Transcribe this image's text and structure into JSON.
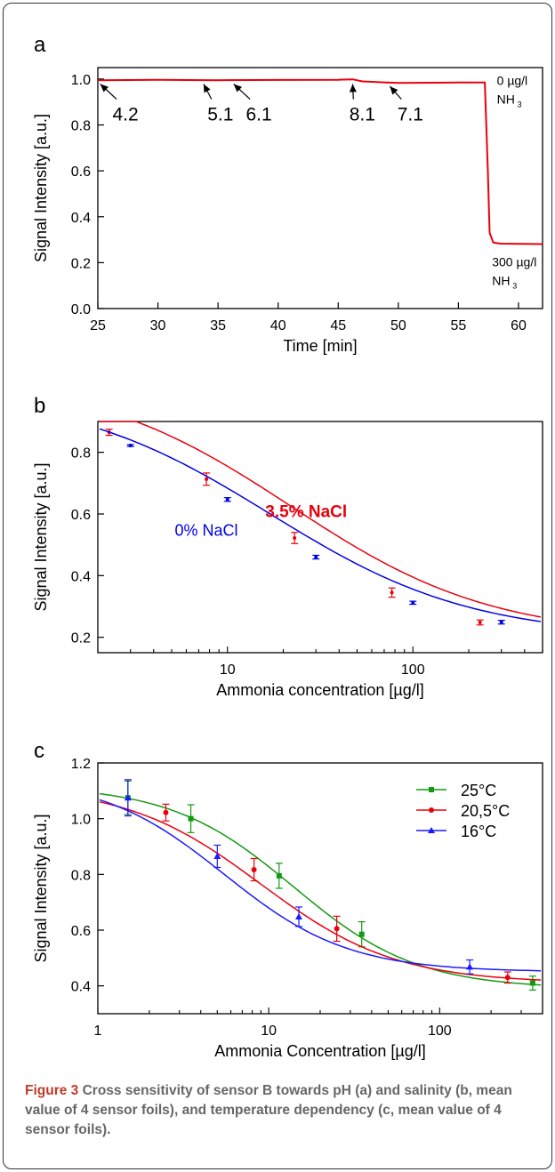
{
  "chart_data": [
    {
      "type": "line",
      "panel_label": "a",
      "xlabel": "Time [min]",
      "ylabel": "Signal Intensity [a.u.]",
      "xlim": [
        25,
        62
      ],
      "ylim": [
        0.0,
        1.05
      ],
      "x_ticks": [
        "25",
        "30",
        "35",
        "40",
        "45",
        "50",
        "55",
        "60"
      ],
      "y_ticks": [
        "0.0",
        "0.2",
        "0.4",
        "0.6",
        "0.8",
        "1.0"
      ],
      "series": [
        {
          "color": "#e8000b",
          "x": [
            25,
            30,
            35,
            40,
            45,
            46.2,
            47,
            49,
            50,
            55,
            57.2,
            57.45,
            57.6,
            57.9,
            58.5,
            62
          ],
          "y": [
            0.995,
            0.997,
            0.995,
            0.996,
            0.997,
            0.999,
            0.99,
            0.985,
            0.983,
            0.985,
            0.985,
            0.6,
            0.33,
            0.288,
            0.283,
            0.281
          ]
        }
      ],
      "annotations": [
        {
          "text": "4.2",
          "point": [
            25.2,
            0.99
          ],
          "label_pos": [
            27.3,
            0.85
          ]
        },
        {
          "text": "5.1",
          "point": [
            33.8,
            0.99
          ],
          "label_pos": [
            35.2,
            0.85
          ]
        },
        {
          "text": "6.1",
          "point": [
            36.3,
            0.99
          ],
          "label_pos": [
            38.4,
            0.85
          ]
        },
        {
          "text": "8.1",
          "point": [
            46.2,
            0.99
          ],
          "label_pos": [
            47.0,
            0.85
          ]
        },
        {
          "text": "7.1",
          "point": [
            49.3,
            0.98
          ],
          "label_pos": [
            51.0,
            0.85
          ]
        }
      ],
      "side_labels": [
        {
          "line1": "0 µg/l",
          "line2": "NH",
          "sub": "3",
          "pos": [
            58.2,
            0.99
          ]
        },
        {
          "line1": "300 µg/l",
          "line2": "NH",
          "sub": "3",
          "pos": [
            57.8,
            0.2
          ]
        }
      ]
    },
    {
      "type": "scatter",
      "panel_label": "b",
      "xlabel": "Ammonia concentration [µg/l]",
      "ylabel": "Signal Intensity [a.u.]",
      "xscale": "log",
      "xlim": [
        2,
        500
      ],
      "ylim": [
        0.15,
        0.9
      ],
      "x_ticks": [
        {
          "value": 10,
          "label": "10"
        },
        {
          "value": 100,
          "label": "100"
        }
      ],
      "y_ticks": [
        "0.2",
        "0.4",
        "0.6",
        "0.8"
      ],
      "series": [
        {
          "name": "3.5% NaCl",
          "color": "#e8000b",
          "x": [
            2.3,
            7.7,
            23,
            77,
            230
          ],
          "y": [
            0.865,
            0.713,
            0.522,
            0.345,
            0.248
          ],
          "err": [
            0.01,
            0.02,
            0.018,
            0.015,
            0.008
          ],
          "fit": {
            "A1": 1.05,
            "A2": 0.2,
            "x0": 22,
            "p": 0.8
          }
        },
        {
          "name": "0% NaCl",
          "color": "#0000e6",
          "x": [
            3,
            10,
            30,
            100,
            300
          ],
          "y": [
            0.822,
            0.647,
            0.46,
            0.312,
            0.249
          ],
          "err": [
            0.003,
            0.006,
            0.006,
            0.005,
            0.006
          ],
          "fit": {
            "A1": 1.0,
            "A2": 0.2,
            "x0": 17,
            "p": 0.8
          }
        }
      ]
    },
    {
      "type": "scatter",
      "panel_label": "c",
      "xlabel": "Ammonia Concentration [µg/l]",
      "ylabel": "Signal Intensity [a.u.]",
      "xscale": "log",
      "xlim": [
        1,
        400
      ],
      "ylim": [
        0.3,
        1.2
      ],
      "x_ticks": [
        {
          "value": 1,
          "label": "1"
        },
        {
          "value": 10,
          "label": "10"
        },
        {
          "value": 100,
          "label": "100"
        }
      ],
      "y_ticks": [
        "0.4",
        "0.6",
        "0.8",
        "1.0",
        "1.2"
      ],
      "legend_position": "top-right",
      "series": [
        {
          "name": "25°C",
          "color": "#139a13",
          "marker": "square",
          "x": [
            1.5,
            3.5,
            11.5,
            35,
            350
          ],
          "y": [
            1.075,
            1.0,
            0.795,
            0.585,
            0.41
          ],
          "err": [
            0.06,
            0.05,
            0.045,
            0.045,
            0.025
          ],
          "fit": {
            "A1": 1.12,
            "A2": 0.39,
            "x0": 14,
            "p": 1.2
          }
        },
        {
          "name": "20,5°C",
          "color": "#e8000b",
          "marker": "circle",
          "x": [
            2.5,
            8.2,
            25,
            250
          ],
          "y": [
            1.022,
            0.817,
            0.605,
            0.43
          ],
          "err": [
            0.03,
            0.04,
            0.045,
            0.02
          ],
          "fit": {
            "A1": 1.12,
            "A2": 0.41,
            "x0": 9,
            "p": 1.1
          }
        },
        {
          "name": "16°C",
          "color": "#1a1aff",
          "marker": "triangle",
          "x": [
            1.5,
            5,
            15,
            150
          ],
          "y": [
            1.075,
            0.865,
            0.648,
            0.468
          ],
          "err": [
            0.065,
            0.04,
            0.035,
            0.025
          ],
          "fit": {
            "A1": 1.15,
            "A2": 0.45,
            "x0": 5.5,
            "p": 1.2
          }
        }
      ]
    }
  ],
  "caption": {
    "figure_label": "Figure 3",
    "text": " Cross sensitivity of sensor B towards pH (a) and salinity (b, mean value of 4 sensor foils), and temperature dependency (c, mean value of 4 sensor foils)."
  }
}
